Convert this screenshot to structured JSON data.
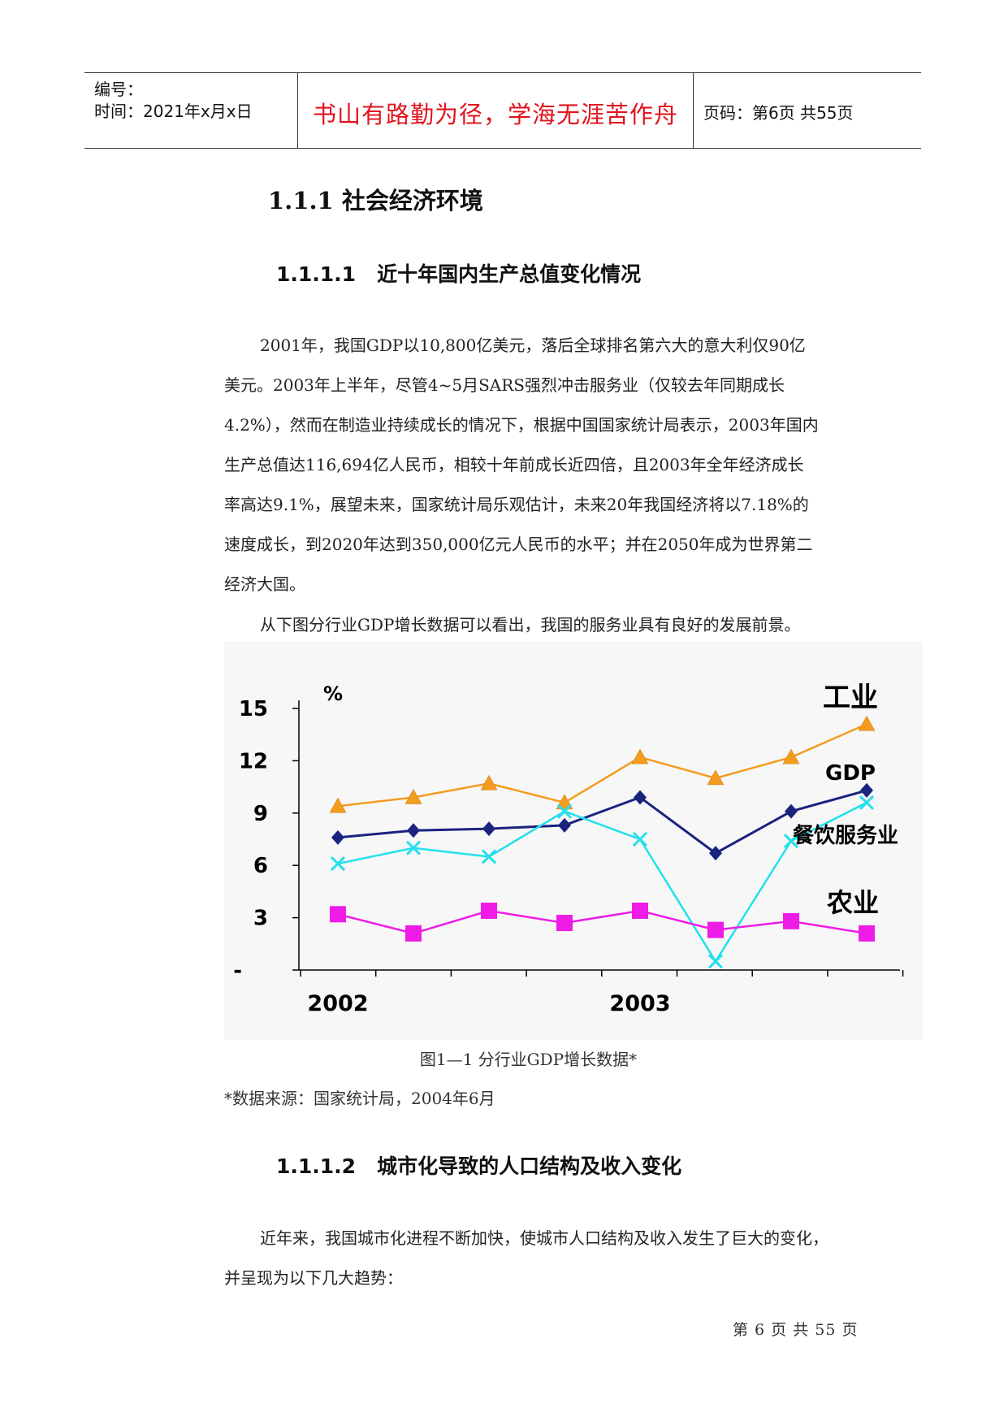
{
  "header": {
    "number_label": "编号：",
    "time_label": "时间：2021年x月x日",
    "motto": "书山有路勤为径，学海无涯苦作舟",
    "page_label": "页码：第6页 共55页"
  },
  "section": {
    "h3": "1.1.1 社会经济环境",
    "h4a_num": "1.1.1.1",
    "h4a_text": "近十年国内生产总值变化情况",
    "para1": [
      "2001年，我国GDP以10,800亿美元，落后全球排名第六大的意大利仅90亿",
      "美元。2003年上半年，尽管4~5月SARS强烈冲击服务业（仅较去年同期成长",
      "4.2%），然而在制造业持续成长的情况下，根据中国国家统计局表示，2003年国内",
      "生产总值达116,694亿人民币，相较十年前成长近四倍，且2003年全年经济成长",
      "率高达9.1%，展望未来，国家统计局乐观估计，未来20年我国经济将以7.18%的",
      "速度成长，到2020年达到350,000亿元人民币的水平；并在2050年成为世界第二",
      "经济大国。"
    ],
    "para2": "从下图分行业GDP增长数据可以看出，我国的服务业具有良好的发展前景。",
    "figure_caption": "图1—1 分行业GDP增长数据*",
    "source_note": "*数据来源：国家统计局，2004年6月",
    "h4b_num": "1.1.1.2",
    "h4b_text": "城市化导致的人口结构及收入变化",
    "para3": [
      "近年来，我国城市化进程不断加快，使城市人口结构及收入发生了巨大的变化，",
      "并呈现为以下几大趋势："
    ]
  },
  "footer": "第 6 页 共 55 页",
  "chart_data": {
    "type": "line",
    "ylabel": "%",
    "yticks": [
      "15",
      "12",
      "9",
      "6",
      "3",
      "-"
    ],
    "ylim": [
      0,
      15
    ],
    "x_labels": [
      {
        "label": "2002",
        "at_index": 0
      },
      {
        "label": "2003",
        "at_index": 4
      }
    ],
    "x": [
      1,
      2,
      3,
      4,
      5,
      6,
      7,
      8
    ],
    "grid": false,
    "series": [
      {
        "name": "工业",
        "color": "#f39c1f",
        "marker": "triangle",
        "values": [
          9.4,
          9.9,
          10.7,
          9.6,
          12.2,
          11.0,
          12.2,
          14.1
        ]
      },
      {
        "name": "GDP",
        "color": "#1a237e",
        "marker": "diamond",
        "values": [
          7.6,
          8.0,
          8.1,
          8.3,
          9.9,
          6.7,
          9.1,
          10.3
        ]
      },
      {
        "name": "餐饮服务业",
        "color": "#22e0ec",
        "marker": "x",
        "values": [
          6.1,
          7.0,
          6.5,
          9.1,
          7.5,
          0.5,
          7.4,
          9.6
        ]
      },
      {
        "name": "农业",
        "color": "#ee1ce6",
        "marker": "square",
        "values": [
          3.2,
          2.1,
          3.4,
          2.7,
          3.4,
          2.3,
          2.8,
          2.1
        ]
      }
    ]
  }
}
